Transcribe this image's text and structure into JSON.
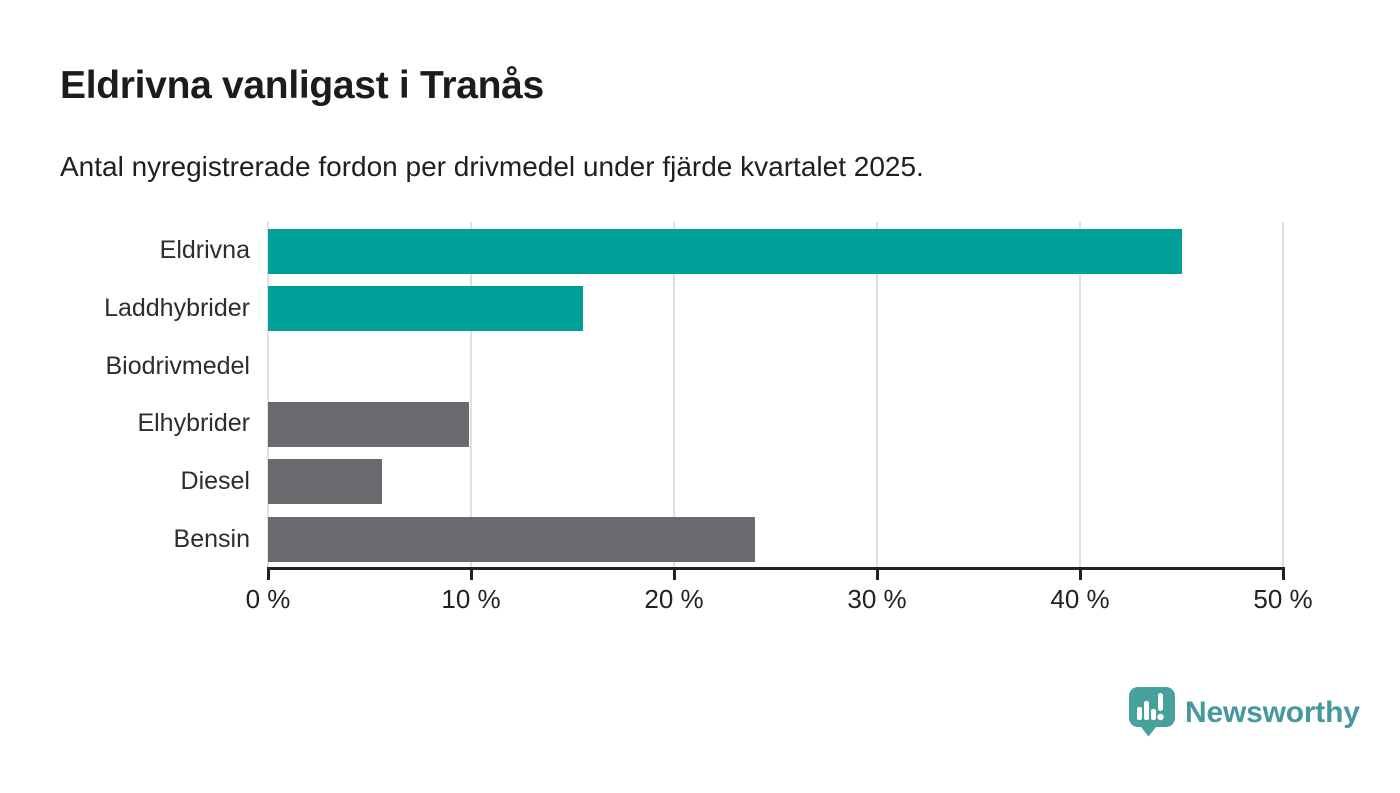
{
  "header": {
    "title": "Eldrivna vanligast i Tranås",
    "subtitle": "Antal nyregistrerade fordon per drivmedel under fjärde kvartalet 2025."
  },
  "chart_data": {
    "type": "bar",
    "orientation": "horizontal",
    "title": "Eldrivna vanligast i Tranås",
    "subtitle": "Antal nyregistrerade fordon per drivmedel under fjärde kvartalet 2025.",
    "categories": [
      "Eldrivna",
      "Laddhybrider",
      "Biodrivmedel",
      "Elhybrider",
      "Diesel",
      "Bensin"
    ],
    "values": [
      45,
      15.5,
      0,
      9.9,
      5.6,
      24
    ],
    "unit": "%",
    "xlim": [
      0,
      50
    ],
    "x_ticks": [
      {
        "value": 0,
        "label": "0 %"
      },
      {
        "value": 10,
        "label": "10 %"
      },
      {
        "value": 20,
        "label": "20 %"
      },
      {
        "value": 30,
        "label": "30 %"
      },
      {
        "value": 40,
        "label": "40 %"
      },
      {
        "value": 50,
        "label": "50 %"
      }
    ],
    "grid": "vertical",
    "legend": "none",
    "bar_colors": [
      "#00a099",
      "#00a099",
      "#6a696e",
      "#6a696e",
      "#6a696e",
      "#6a696e"
    ]
  },
  "colors": {
    "accent_teal": "#00a099",
    "neutral_gray": "#6a696e",
    "axis": "#222222",
    "gridline": "#e0e0e0",
    "brand_teal": "#45989e",
    "logo_bubble": "#46a09c"
  },
  "branding": {
    "logo_text": "Newsworthy"
  }
}
